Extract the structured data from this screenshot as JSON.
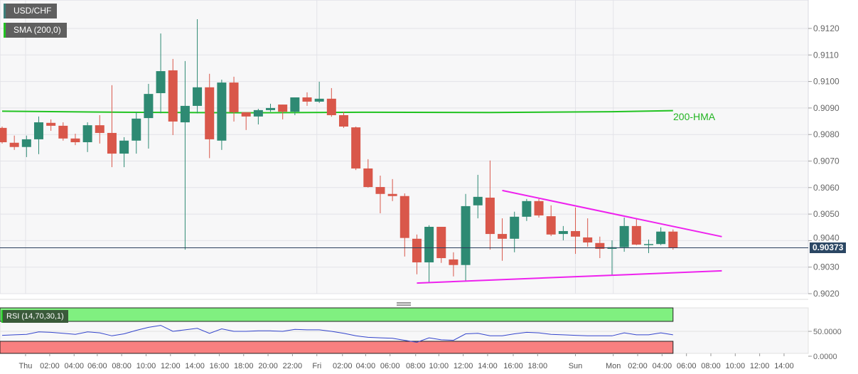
{
  "symbol": "USD/CHF",
  "indicator_label": "SMA (200,0)",
  "hma_label": "200-HMA",
  "rsi_label": "RSI (14,70,30,1)",
  "last_price": "0.90373",
  "colors": {
    "up": "#2e8a73",
    "down": "#d9574a",
    "hma": "#22c322",
    "trendline": "#ee22ee",
    "rsi_line": "#3344cc",
    "overbought": "#80f080",
    "oversold": "#f88080",
    "last_price_bg": "#2b4764"
  },
  "chart_data": {
    "type": "candlestick",
    "y_ticks": [
      "0.9120",
      "0.9110",
      "0.9100",
      "0.9090",
      "0.9080",
      "0.9070",
      "0.9060",
      "0.9050",
      "0.9040",
      "0.9030",
      "0.9020"
    ],
    "ylim": [
      0.90175,
      0.91305
    ],
    "x_ticks": [
      "Thu",
      "02:00",
      "04:00",
      "06:00",
      "08:00",
      "10:00",
      "12:00",
      "14:00",
      "16:00",
      "18:00",
      "20:00",
      "22:00",
      "Fri",
      "02:00",
      "04:00",
      "06:00",
      "08:00",
      "10:00",
      "12:00",
      "14:00",
      "16:00",
      "18:00",
      "Sun",
      "Mon",
      "02:00",
      "04:00",
      "06:00",
      "08:00",
      "10:00",
      "12:00",
      "14:00"
    ],
    "ohlc": [
      [
        0.90825,
        0.9083,
        0.90766,
        0.90771
      ],
      [
        0.90769,
        0.90796,
        0.90742,
        0.90753
      ],
      [
        0.90753,
        0.90796,
        0.90715,
        0.90782
      ],
      [
        0.90782,
        0.90868,
        0.90726,
        0.90846
      ],
      [
        0.90844,
        0.90857,
        0.90814,
        0.90833
      ],
      [
        0.90833,
        0.90846,
        0.90777,
        0.90785
      ],
      [
        0.90785,
        0.90803,
        0.9076,
        0.90771
      ],
      [
        0.90771,
        0.90846,
        0.90734,
        0.90835
      ],
      [
        0.90835,
        0.90873,
        0.90766,
        0.90806
      ],
      [
        0.90806,
        0.90986,
        0.90677,
        0.90728
      ],
      [
        0.90728,
        0.9079,
        0.90677,
        0.90777
      ],
      [
        0.90777,
        0.90886,
        0.90728,
        0.9086
      ],
      [
        0.90862,
        0.90991,
        0.90747,
        0.90953
      ],
      [
        0.90956,
        0.91181,
        0.9088,
        0.91039
      ],
      [
        0.91042,
        0.91085,
        0.90798,
        0.90849
      ],
      [
        0.90846,
        0.91077,
        0.90366,
        0.90908
      ],
      [
        0.90908,
        0.91235,
        0.9088,
        0.90978
      ],
      [
        0.90978,
        0.91029,
        0.90711,
        0.90782
      ],
      [
        0.90777,
        0.91007,
        0.90742,
        0.90996
      ],
      [
        0.90996,
        0.91018,
        0.90849,
        0.90884
      ],
      [
        0.90884,
        0.90884,
        0.90817,
        0.90868
      ],
      [
        0.90868,
        0.90897,
        0.90838,
        0.90892
      ],
      [
        0.90892,
        0.90916,
        0.90886,
        0.909
      ],
      [
        0.90913,
        0.90913,
        0.90857,
        0.90886
      ],
      [
        0.90886,
        0.9094,
        0.90873,
        0.9094
      ],
      [
        0.9094,
        0.90959,
        0.90908,
        0.90924
      ],
      [
        0.90924,
        0.90999,
        0.90919,
        0.90935
      ],
      [
        0.90935,
        0.90975,
        0.90867,
        0.90873
      ],
      [
        0.90873,
        0.90886,
        0.90825,
        0.9083
      ],
      [
        0.90827,
        0.9083,
        0.90666,
        0.90672
      ],
      [
        0.90672,
        0.90707,
        0.906,
        0.90602
      ],
      [
        0.90602,
        0.90645,
        0.90503,
        0.90576
      ],
      [
        0.90576,
        0.90632,
        0.90549,
        0.90568
      ],
      [
        0.90568,
        0.90578,
        0.9034,
        0.9041
      ],
      [
        0.90407,
        0.90423,
        0.90273,
        0.90318
      ],
      [
        0.90318,
        0.90458,
        0.90243,
        0.90452
      ],
      [
        0.90452,
        0.90452,
        0.90316,
        0.90334
      ],
      [
        0.90329,
        0.90356,
        0.90265,
        0.90308
      ],
      [
        0.90308,
        0.90576,
        0.90249,
        0.9053
      ],
      [
        0.90533,
        0.90648,
        0.90484,
        0.90565
      ],
      [
        0.90562,
        0.90702,
        0.90366,
        0.90425
      ],
      [
        0.90425,
        0.90484,
        0.90324,
        0.90407
      ],
      [
        0.90407,
        0.90509,
        0.90356,
        0.9049
      ],
      [
        0.9049,
        0.90557,
        0.90474,
        0.90549
      ],
      [
        0.90549,
        0.90557,
        0.90487,
        0.90495
      ],
      [
        0.90492,
        0.90533,
        0.90417,
        0.90423
      ],
      [
        0.90425,
        0.90455,
        0.90401,
        0.90436
      ],
      [
        0.90436,
        0.90525,
        0.9035,
        0.90415
      ],
      [
        0.90412,
        0.90484,
        0.90377,
        0.90393
      ],
      [
        0.90391,
        0.90415,
        0.90334,
        0.90369
      ],
      [
        0.90369,
        0.90401,
        0.9027,
        0.90375
      ],
      [
        0.90375,
        0.90487,
        0.90358,
        0.90455
      ],
      [
        0.90455,
        0.9048,
        0.90383,
        0.90385
      ],
      [
        0.90383,
        0.90404,
        0.90353,
        0.90387
      ],
      [
        0.90387,
        0.9045,
        0.90383,
        0.90434
      ],
      [
        0.90434,
        0.90442,
        0.90366,
        0.90373
      ]
    ],
    "hma_200": [
      [
        0,
        0.90888
      ],
      [
        10,
        0.90884
      ],
      [
        20,
        0.90882
      ],
      [
        30,
        0.90884
      ],
      [
        40,
        0.90883
      ],
      [
        50,
        0.90886
      ],
      [
        55,
        0.9089
      ]
    ],
    "trendlines": {
      "upper": [
        [
          41,
          0.90589
        ],
        [
          59,
          0.90415
        ]
      ],
      "lower": [
        [
          34,
          0.9024
        ],
        [
          59,
          0.90286
        ]
      ]
    },
    "rsi": {
      "y_ticks": [
        "50.0000",
        "0.0000"
      ],
      "ylim": [
        0,
        100
      ],
      "overbought": 70,
      "oversold": 30,
      "values": [
        42,
        43,
        44,
        49,
        48,
        46,
        44,
        49,
        47,
        41,
        45,
        52,
        58,
        62,
        50,
        53,
        56,
        46,
        55,
        50,
        50,
        51,
        51,
        50,
        54,
        53,
        53,
        50,
        46,
        41,
        38,
        37,
        36,
        32,
        28,
        37,
        33,
        32,
        45,
        46,
        41,
        41,
        45,
        48,
        47,
        44,
        43,
        42,
        41,
        41,
        41,
        47,
        43,
        43,
        47,
        43
      ]
    }
  }
}
